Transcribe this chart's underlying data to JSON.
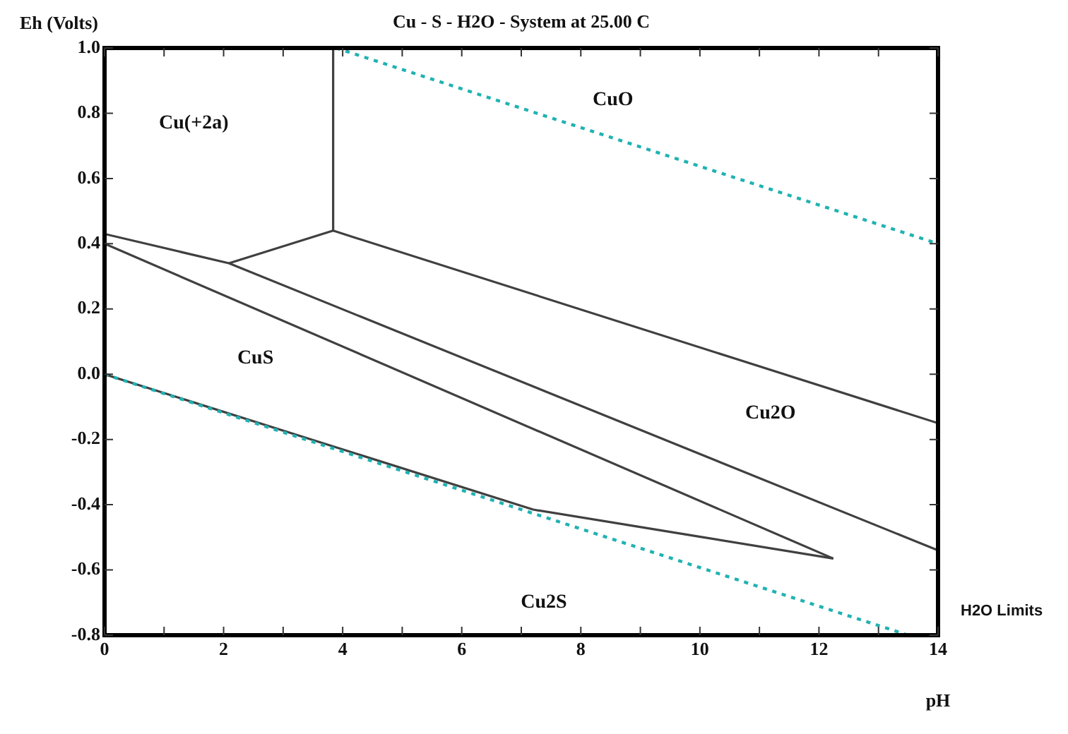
{
  "chart_data": {
    "type": "line",
    "title": "Cu - S - H2O - System at 25.00 C",
    "xlabel": "pH",
    "ylabel": "Eh (Volts)",
    "xlim": [
      0,
      14
    ],
    "ylim": [
      -0.8,
      1.0
    ],
    "xticks": [
      0,
      {
        "value": 1,
        "label": null
      },
      2,
      {
        "value": 3,
        "label": null
      },
      4,
      {
        "value": 5,
        "label": null
      },
      6,
      {
        "value": 7,
        "label": null
      },
      8,
      {
        "value": 9,
        "label": null
      },
      10,
      {
        "value": 11,
        "label": null
      },
      12,
      {
        "value": 13,
        "label": null
      },
      14
    ],
    "yticks": [
      -0.8,
      -0.6,
      -0.4,
      -0.2,
      {
        "value": 0,
        "label": "0.0"
      },
      0.2,
      0.4,
      0.6,
      0.8,
      {
        "value": 1,
        "label": "1.0"
      }
    ],
    "marker": "none",
    "grid": false,
    "legend": false,
    "series": [
      {
        "color": "#20b2b2",
        "line_style": "dotted",
        "x": [
          3.89,
          14
        ],
        "values": [
          1.0,
          0.4
        ]
      },
      {
        "color": "#20b2b2",
        "line_style": "dotted",
        "x": [
          0,
          13.5
        ],
        "values": [
          0,
          -0.8
        ]
      },
      {
        "color": "#404040",
        "line_style": "solid",
        "x": [
          3.84,
          3.84
        ],
        "values": [
          1.0,
          0.44
        ]
      },
      {
        "color": "#404040",
        "line_style": "solid",
        "x": [
          3.84,
          14
        ],
        "values": [
          0.44,
          -0.15
        ]
      },
      {
        "color": "#404040",
        "line_style": "solid",
        "x": [
          3.84,
          2.09
        ],
        "values": [
          0.44,
          0.34
        ]
      },
      {
        "color": "#404040",
        "line_style": "solid",
        "x": [
          0,
          2.09,
          14
        ],
        "values": [
          0.43,
          0.34,
          -0.54
        ]
      },
      {
        "color": "#404040",
        "line_style": "solid",
        "x": [
          0,
          12.24
        ],
        "values": [
          0.4,
          -0.565
        ]
      },
      {
        "color": "#404040",
        "line_style": "solid",
        "x": [
          0,
          7.2,
          12.24
        ],
        "values": [
          0,
          -0.415,
          -0.565
        ]
      }
    ],
    "annotations": [
      "Cu(+2a)",
      "CuO",
      "CuS",
      "Cu2O",
      "Cu2S",
      "H2O Limits"
    ]
  }
}
